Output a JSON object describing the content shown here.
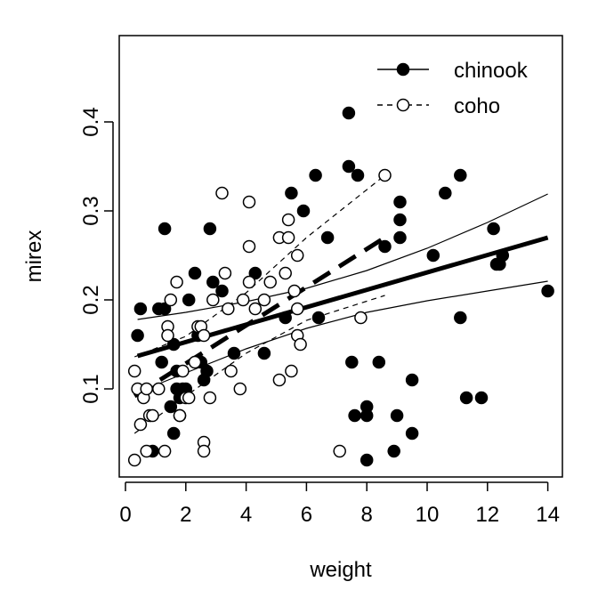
{
  "chart_data": {
    "type": "scatter",
    "xlabel": "weight",
    "ylabel": "mirex",
    "xlim": [
      0,
      14.5
    ],
    "ylim": [
      0.01,
      0.5
    ],
    "x_ticks": [
      0,
      2,
      4,
      6,
      8,
      10,
      12,
      14
    ],
    "x_tick_labels": [
      "0",
      "2",
      "4",
      "6",
      "8",
      "10",
      "12",
      "14"
    ],
    "y_ticks": [
      0.1,
      0.2,
      0.3,
      0.4
    ],
    "y_tick_labels": [
      "0.1",
      "0.2",
      "0.3",
      "0.4"
    ],
    "grid": false,
    "legend_position": "top-right",
    "series": [
      {
        "name": "chinook",
        "marker": "filled-circle",
        "color": "#000000",
        "points": [
          [
            0.4,
            0.16
          ],
          [
            0.5,
            0.19
          ],
          [
            0.9,
            0.03
          ],
          [
            1.1,
            0.19
          ],
          [
            1.2,
            0.13
          ],
          [
            1.3,
            0.19
          ],
          [
            1.3,
            0.28
          ],
          [
            1.5,
            0.08
          ],
          [
            1.6,
            0.05
          ],
          [
            1.6,
            0.15
          ],
          [
            1.7,
            0.1
          ],
          [
            1.7,
            0.12
          ],
          [
            1.8,
            0.09
          ],
          [
            1.8,
            0.07
          ],
          [
            1.9,
            0.1
          ],
          [
            2.0,
            0.1
          ],
          [
            2.1,
            0.2
          ],
          [
            2.3,
            0.23
          ],
          [
            2.4,
            0.16
          ],
          [
            2.5,
            0.13
          ],
          [
            2.6,
            0.11
          ],
          [
            2.7,
            0.12
          ],
          [
            2.8,
            0.28
          ],
          [
            2.9,
            0.22
          ],
          [
            3.2,
            0.21
          ],
          [
            3.6,
            0.14
          ],
          [
            4.3,
            0.23
          ],
          [
            4.6,
            0.14
          ],
          [
            5.3,
            0.18
          ],
          [
            5.5,
            0.32
          ],
          [
            5.9,
            0.3
          ],
          [
            6.3,
            0.34
          ],
          [
            6.4,
            0.18
          ],
          [
            6.7,
            0.27
          ],
          [
            7.4,
            0.41
          ],
          [
            7.4,
            0.35
          ],
          [
            7.5,
            0.13
          ],
          [
            7.6,
            0.07
          ],
          [
            7.7,
            0.34
          ],
          [
            8.0,
            0.07
          ],
          [
            8.0,
            0.08
          ],
          [
            8.0,
            0.02
          ],
          [
            8.4,
            0.13
          ],
          [
            8.6,
            0.26
          ],
          [
            8.9,
            0.03
          ],
          [
            9.0,
            0.07
          ],
          [
            9.1,
            0.31
          ],
          [
            9.1,
            0.29
          ],
          [
            9.1,
            0.27
          ],
          [
            9.5,
            0.11
          ],
          [
            9.5,
            0.05
          ],
          [
            10.2,
            0.25
          ],
          [
            10.6,
            0.32
          ],
          [
            11.1,
            0.34
          ],
          [
            11.1,
            0.18
          ],
          [
            11.3,
            0.09
          ],
          [
            11.8,
            0.09
          ],
          [
            12.2,
            0.28
          ],
          [
            12.3,
            0.24
          ],
          [
            12.4,
            0.24
          ],
          [
            12.5,
            0.25
          ],
          [
            14.0,
            0.21
          ]
        ]
      },
      {
        "name": "coho",
        "marker": "open-circle",
        "color": "#000000",
        "points": [
          [
            0.3,
            0.12
          ],
          [
            0.3,
            0.02
          ],
          [
            0.4,
            0.1
          ],
          [
            0.5,
            0.06
          ],
          [
            0.6,
            0.09
          ],
          [
            0.7,
            0.03
          ],
          [
            0.7,
            0.1
          ],
          [
            0.8,
            0.07
          ],
          [
            0.9,
            0.07
          ],
          [
            1.1,
            0.1
          ],
          [
            1.3,
            0.03
          ],
          [
            1.4,
            0.17
          ],
          [
            1.4,
            0.16
          ],
          [
            1.5,
            0.2
          ],
          [
            1.7,
            0.22
          ],
          [
            1.8,
            0.07
          ],
          [
            1.9,
            0.12
          ],
          [
            2.0,
            0.09
          ],
          [
            2.1,
            0.09
          ],
          [
            2.3,
            0.13
          ],
          [
            2.4,
            0.17
          ],
          [
            2.5,
            0.17
          ],
          [
            2.6,
            0.16
          ],
          [
            2.6,
            0.04
          ],
          [
            2.6,
            0.03
          ],
          [
            2.8,
            0.09
          ],
          [
            2.9,
            0.2
          ],
          [
            3.2,
            0.32
          ],
          [
            3.3,
            0.23
          ],
          [
            3.4,
            0.19
          ],
          [
            3.5,
            0.12
          ],
          [
            3.8,
            0.1
          ],
          [
            3.9,
            0.2
          ],
          [
            4.1,
            0.31
          ],
          [
            4.1,
            0.26
          ],
          [
            4.1,
            0.22
          ],
          [
            4.3,
            0.19
          ],
          [
            4.6,
            0.2
          ],
          [
            4.8,
            0.22
          ],
          [
            5.1,
            0.11
          ],
          [
            5.1,
            0.27
          ],
          [
            5.3,
            0.23
          ],
          [
            5.4,
            0.29
          ],
          [
            5.4,
            0.27
          ],
          [
            5.5,
            0.12
          ],
          [
            5.6,
            0.21
          ],
          [
            5.7,
            0.19
          ],
          [
            5.7,
            0.16
          ],
          [
            5.7,
            0.25
          ],
          [
            5.8,
            0.15
          ],
          [
            7.1,
            0.03
          ],
          [
            7.8,
            0.18
          ],
          [
            8.6,
            0.34
          ]
        ]
      }
    ],
    "fit_lines": [
      {
        "series": "chinook",
        "role": "fit",
        "style": "thick-solid",
        "x": [
          0.4,
          14.0
        ],
        "y": [
          0.137,
          0.27
        ]
      },
      {
        "series": "chinook",
        "role": "upper band",
        "style": "thin-solid",
        "x": [
          0.4,
          2,
          4,
          6,
          8,
          10,
          12,
          14.0
        ],
        "y": [
          0.178,
          0.186,
          0.198,
          0.213,
          0.233,
          0.258,
          0.287,
          0.319
        ]
      },
      {
        "series": "chinook",
        "role": "lower band",
        "style": "thin-solid",
        "x": [
          0.4,
          2,
          4,
          6,
          8,
          10,
          12,
          14.0
        ],
        "y": [
          0.096,
          0.118,
          0.145,
          0.168,
          0.186,
          0.199,
          0.21,
          0.221
        ]
      },
      {
        "series": "coho",
        "role": "fit",
        "style": "thick-dashed",
        "x": [
          0.3,
          8.6
        ],
        "y": [
          0.092,
          0.27
        ]
      },
      {
        "series": "coho",
        "role": "upper band",
        "style": "thin-dashed",
        "x": [
          0.3,
          2,
          4,
          6,
          8.6
        ],
        "y": [
          0.136,
          0.159,
          0.208,
          0.27,
          0.34
        ]
      },
      {
        "series": "coho",
        "role": "lower band",
        "style": "thin-dashed",
        "x": [
          0.3,
          2,
          4,
          6,
          8.6
        ],
        "y": [
          0.05,
          0.092,
          0.14,
          0.177,
          0.205
        ]
      }
    ]
  }
}
